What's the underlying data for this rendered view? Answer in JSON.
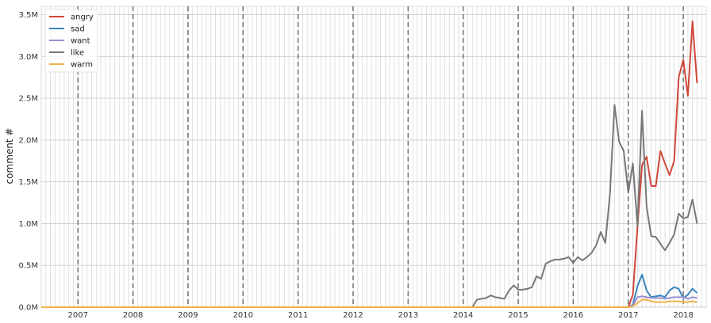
{
  "chart_data": {
    "type": "line",
    "title": "",
    "xlabel": "",
    "ylabel": "comment #",
    "xlim": [
      "2006-05",
      "2018-06"
    ],
    "ylim": [
      0,
      3600000
    ],
    "grid": true,
    "legend_position": "top-left",
    "x_ticks": [
      "2007",
      "2008",
      "2009",
      "2010",
      "2011",
      "2012",
      "2013",
      "2014",
      "2015",
      "2016",
      "2017",
      "2018"
    ],
    "y_ticks": [
      {
        "value": 0,
        "label": "0.0M"
      },
      {
        "value": 500000,
        "label": "0.5M"
      },
      {
        "value": 1000000,
        "label": "1.0M"
      },
      {
        "value": 1500000,
        "label": "1.5M"
      },
      {
        "value": 2000000,
        "label": "2.0M"
      },
      {
        "value": 2500000,
        "label": "2.5M"
      },
      {
        "value": 3000000,
        "label": "3.0M"
      },
      {
        "value": 3500000,
        "label": "3.5M"
      }
    ],
    "vlines": [
      "2007-01",
      "2008-01",
      "2009-01",
      "2010-01",
      "2011-01",
      "2012-01",
      "2013-01",
      "2014-01",
      "2015-01",
      "2016-01",
      "2017-01",
      "2018-01"
    ],
    "series": [
      {
        "name": "angry",
        "color": "#d0473a",
        "points": [
          [
            "2006-05",
            0
          ],
          [
            "2017-01",
            0
          ],
          [
            "2017-02",
            150000
          ],
          [
            "2017-03",
            950000
          ],
          [
            "2017-04",
            1700000
          ],
          [
            "2017-05",
            1800000
          ],
          [
            "2017-06",
            1450000
          ],
          [
            "2017-07",
            1450000
          ],
          [
            "2017-08",
            1870000
          ],
          [
            "2017-09",
            1720000
          ],
          [
            "2017-10",
            1580000
          ],
          [
            "2017-11",
            1750000
          ],
          [
            "2017-12",
            2750000
          ],
          [
            "2018-01",
            2960000
          ],
          [
            "2018-02",
            2530000
          ],
          [
            "2018-03",
            3420000
          ],
          [
            "2018-04",
            2680000
          ]
        ]
      },
      {
        "name": "sad",
        "color": "#3a86c0",
        "points": [
          [
            "2006-05",
            0
          ],
          [
            "2017-01",
            0
          ],
          [
            "2017-02",
            30000
          ],
          [
            "2017-03",
            250000
          ],
          [
            "2017-04",
            390000
          ],
          [
            "2017-05",
            200000
          ],
          [
            "2017-06",
            120000
          ],
          [
            "2017-07",
            130000
          ],
          [
            "2017-08",
            140000
          ],
          [
            "2017-09",
            120000
          ],
          [
            "2017-10",
            200000
          ],
          [
            "2017-11",
            240000
          ],
          [
            "2017-12",
            220000
          ],
          [
            "2018-01",
            110000
          ],
          [
            "2018-02",
            150000
          ],
          [
            "2018-03",
            220000
          ],
          [
            "2018-04",
            170000
          ]
        ]
      },
      {
        "name": "want",
        "color": "#9b8fcf",
        "points": [
          [
            "2006-05",
            0
          ],
          [
            "2017-01",
            0
          ],
          [
            "2017-02",
            20000
          ],
          [
            "2017-03",
            120000
          ],
          [
            "2017-04",
            130000
          ],
          [
            "2017-05",
            120000
          ],
          [
            "2017-06",
            110000
          ],
          [
            "2017-07",
            110000
          ],
          [
            "2017-08",
            110000
          ],
          [
            "2017-09",
            100000
          ],
          [
            "2017-10",
            110000
          ],
          [
            "2017-11",
            120000
          ],
          [
            "2017-12",
            120000
          ],
          [
            "2018-01",
            120000
          ],
          [
            "2018-02",
            100000
          ],
          [
            "2018-03",
            120000
          ],
          [
            "2018-04",
            110000
          ]
        ]
      },
      {
        "name": "like",
        "color": "#777777",
        "points": [
          [
            "2006-05",
            0
          ],
          [
            "2014-03",
            0
          ],
          [
            "2014-04",
            90000
          ],
          [
            "2014-05",
            100000
          ],
          [
            "2014-06",
            110000
          ],
          [
            "2014-07",
            140000
          ],
          [
            "2014-08",
            120000
          ],
          [
            "2014-09",
            110000
          ],
          [
            "2014-10",
            100000
          ],
          [
            "2014-11",
            200000
          ],
          [
            "2014-12",
            260000
          ],
          [
            "2015-01",
            210000
          ],
          [
            "2015-02",
            210000
          ],
          [
            "2015-03",
            220000
          ],
          [
            "2015-04",
            240000
          ],
          [
            "2015-05",
            370000
          ],
          [
            "2015-06",
            340000
          ],
          [
            "2015-07",
            520000
          ],
          [
            "2015-08",
            550000
          ],
          [
            "2015-09",
            570000
          ],
          [
            "2015-10",
            570000
          ],
          [
            "2015-11",
            580000
          ],
          [
            "2015-12",
            600000
          ],
          [
            "2016-01",
            530000
          ],
          [
            "2016-02",
            600000
          ],
          [
            "2016-03",
            560000
          ],
          [
            "2016-04",
            600000
          ],
          [
            "2016-05",
            650000
          ],
          [
            "2016-06",
            740000
          ],
          [
            "2016-07",
            900000
          ],
          [
            "2016-08",
            770000
          ],
          [
            "2016-09",
            1350000
          ],
          [
            "2016-10",
            2420000
          ],
          [
            "2016-11",
            1980000
          ],
          [
            "2016-12",
            1870000
          ],
          [
            "2017-01",
            1370000
          ],
          [
            "2017-02",
            1720000
          ],
          [
            "2017-03",
            970000
          ],
          [
            "2017-04",
            2350000
          ],
          [
            "2017-05",
            1200000
          ],
          [
            "2017-06",
            850000
          ],
          [
            "2017-07",
            840000
          ],
          [
            "2017-08",
            760000
          ],
          [
            "2017-09",
            680000
          ],
          [
            "2017-10",
            770000
          ],
          [
            "2017-11",
            870000
          ],
          [
            "2017-12",
            1120000
          ],
          [
            "2018-01",
            1060000
          ],
          [
            "2018-02",
            1080000
          ],
          [
            "2018-03",
            1290000
          ],
          [
            "2018-04",
            1000000
          ]
        ]
      },
      {
        "name": "warm",
        "color": "#f2b24a",
        "points": [
          [
            "2006-05",
            0
          ],
          [
            "2017-01",
            0
          ],
          [
            "2017-02",
            10000
          ],
          [
            "2017-03",
            50000
          ],
          [
            "2017-04",
            90000
          ],
          [
            "2017-05",
            90000
          ],
          [
            "2017-06",
            70000
          ],
          [
            "2017-07",
            60000
          ],
          [
            "2017-08",
            60000
          ],
          [
            "2017-09",
            60000
          ],
          [
            "2017-10",
            70000
          ],
          [
            "2017-11",
            70000
          ],
          [
            "2017-12",
            70000
          ],
          [
            "2018-01",
            60000
          ],
          [
            "2018-02",
            60000
          ],
          [
            "2018-03",
            70000
          ],
          [
            "2018-04",
            60000
          ]
        ]
      }
    ]
  }
}
